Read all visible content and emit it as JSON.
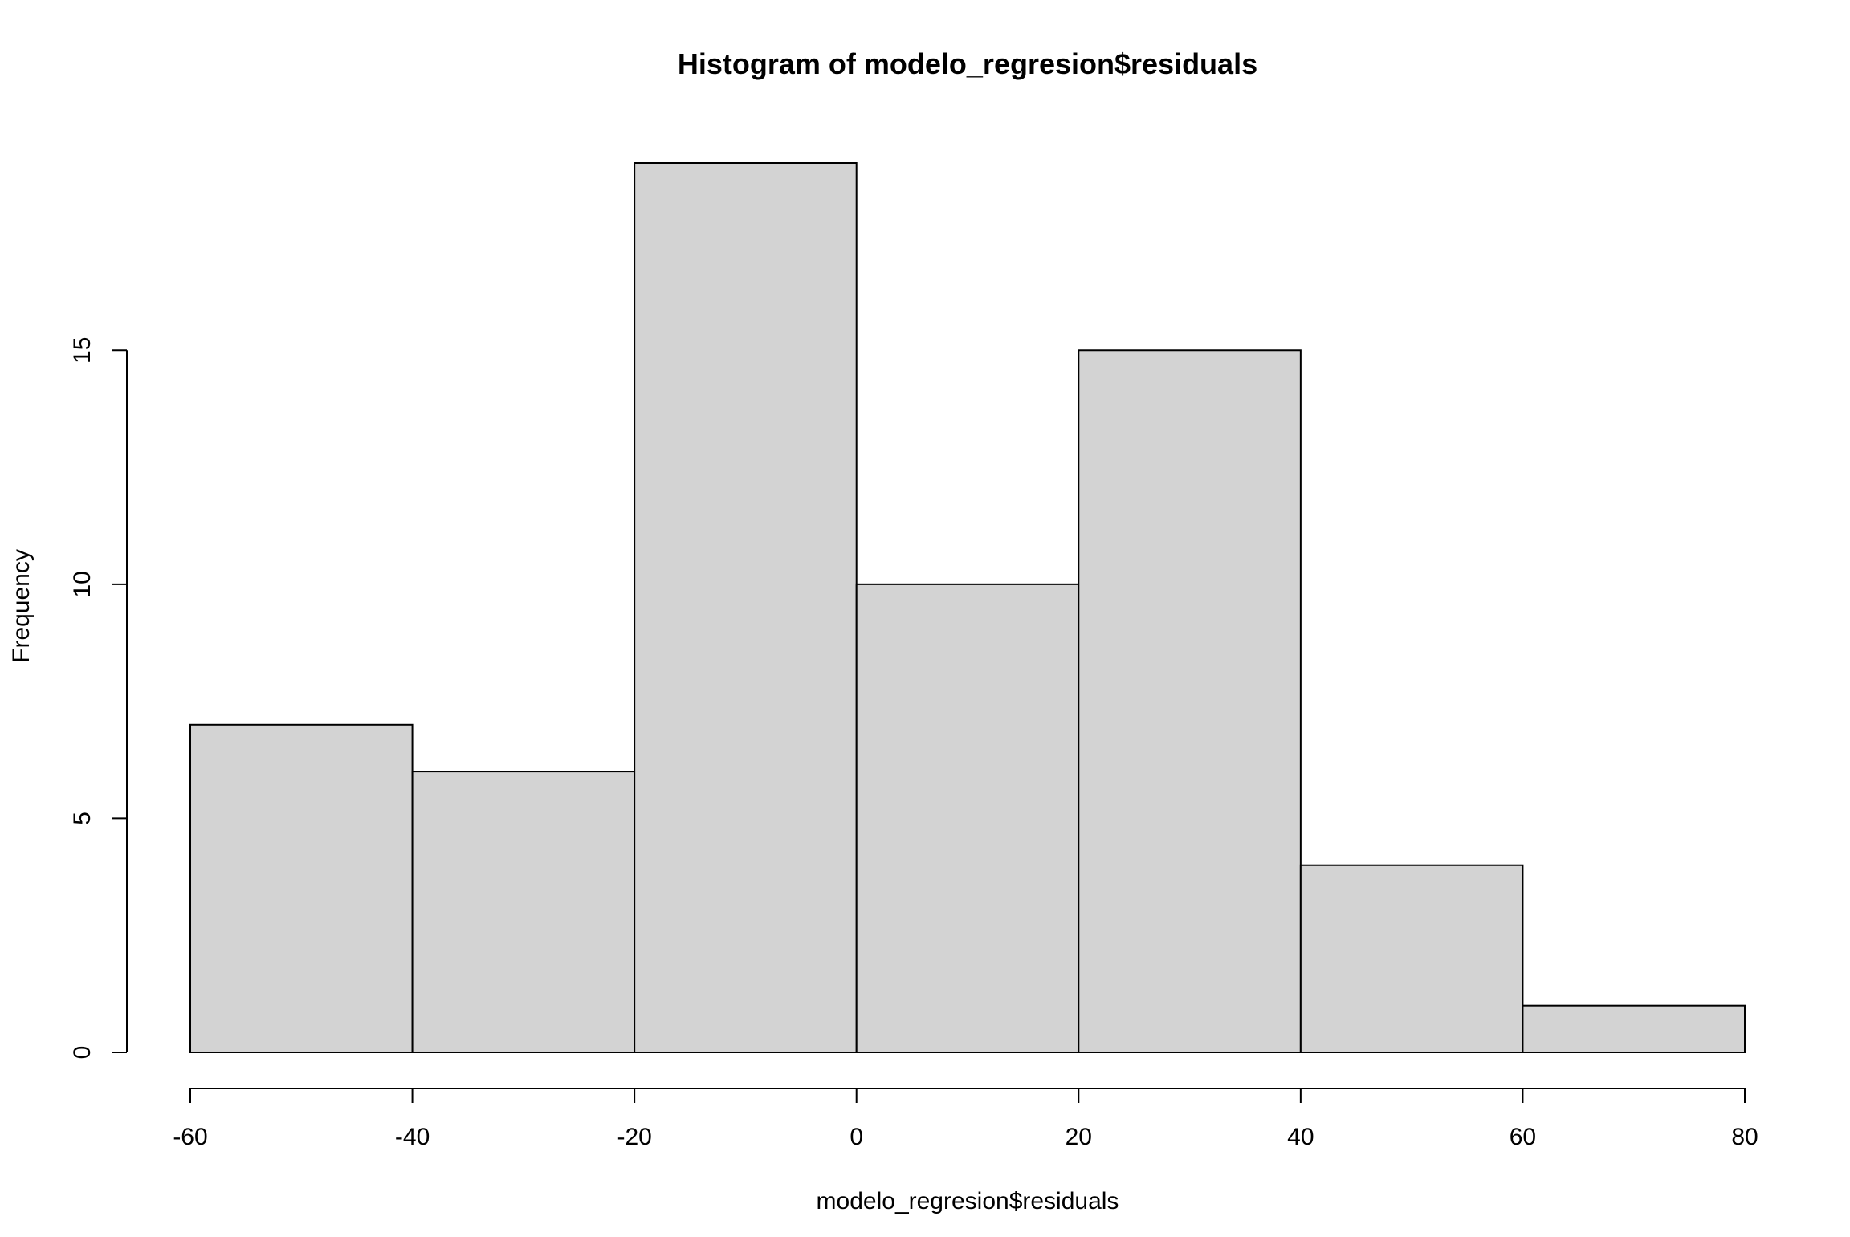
{
  "chart_data": {
    "type": "bar",
    "title": "Histogram of modelo_regresion$residuals",
    "xlabel": "modelo_regresion$residuals",
    "ylabel": "Frequency",
    "bins": [
      {
        "x_start": -60,
        "x_end": -40,
        "count": 7
      },
      {
        "x_start": -40,
        "x_end": -20,
        "count": 6
      },
      {
        "x_start": -20,
        "x_end": 0,
        "count": 19
      },
      {
        "x_start": 0,
        "x_end": 20,
        "count": 10
      },
      {
        "x_start": 20,
        "x_end": 40,
        "count": 15
      },
      {
        "x_start": 40,
        "x_end": 60,
        "count": 4
      },
      {
        "x_start": 60,
        "x_end": 80,
        "count": 1
      }
    ],
    "xlim": [
      -60,
      80
    ],
    "ylim": [
      0,
      19
    ],
    "x_ticks": [
      -60,
      -40,
      -20,
      0,
      20,
      40,
      60,
      80
    ],
    "x_tick_labels": [
      "-60",
      "-40",
      "-20",
      "0",
      "20",
      "40",
      "60",
      "80"
    ],
    "y_ticks": [
      0,
      5,
      10,
      15
    ],
    "y_tick_labels": [
      "0",
      "5",
      "10",
      "15"
    ],
    "grid": false,
    "colors": {
      "bar_fill": "#d3d3d3",
      "bar_stroke": "#000000",
      "axis": "#000000",
      "background": "#ffffff"
    }
  }
}
